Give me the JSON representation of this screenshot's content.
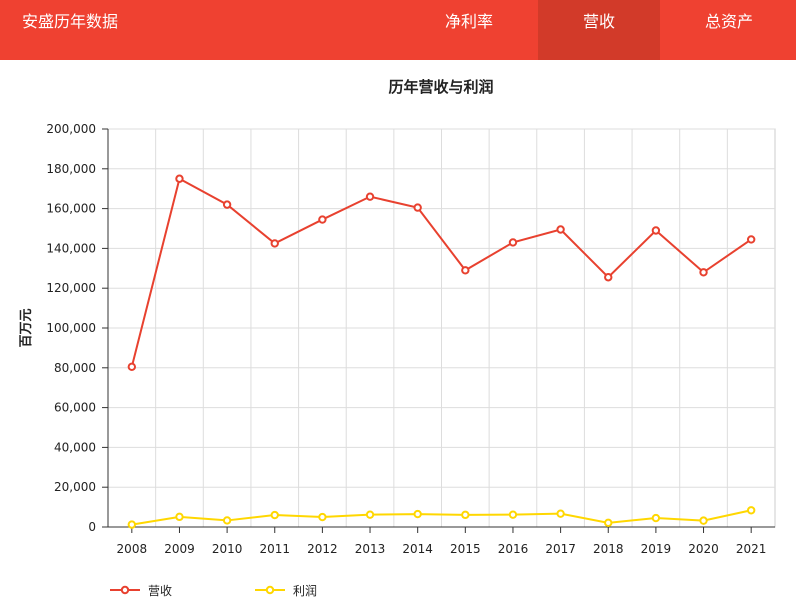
{
  "header": {
    "brand": "安盛历年数据",
    "tabs": [
      {
        "label": "净利率",
        "active": false
      },
      {
        "label": "营收",
        "active": true
      },
      {
        "label": "总资产",
        "active": false
      }
    ],
    "bg_color": "#ef4131",
    "active_tab_color": "#d23a29"
  },
  "chart_data": {
    "type": "line",
    "title": "历年营收与利润",
    "ylabel": "百万元",
    "xlabel": "",
    "x": [
      "2008",
      "2009",
      "2010",
      "2011",
      "2012",
      "2013",
      "2014",
      "2015",
      "2016",
      "2017",
      "2018",
      "2019",
      "2020",
      "2021"
    ],
    "ylim": [
      0,
      200000
    ],
    "yticks": [
      0,
      20000,
      40000,
      60000,
      80000,
      100000,
      120000,
      140000,
      160000,
      180000,
      200000
    ],
    "ytick_labels": [
      "0",
      "20,000",
      "40,000",
      "60,000",
      "80,000",
      "100,000",
      "120,000",
      "140,000",
      "160,000",
      "180,000",
      "200,000"
    ],
    "grid": true,
    "legend_position": "bottom-left",
    "series": [
      {
        "name": "营收",
        "color": "#e8412f",
        "values": [
          80500,
          175000,
          162000,
          142500,
          154500,
          166000,
          160500,
          129000,
          143000,
          149500,
          125500,
          149000,
          128000,
          144500
        ]
      },
      {
        "name": "利润",
        "color": "#ffd700",
        "values": [
          1200,
          5100,
          3300,
          6000,
          5000,
          6200,
          6500,
          6100,
          6200,
          6700,
          2100,
          4500,
          3200,
          8400
        ]
      }
    ]
  }
}
